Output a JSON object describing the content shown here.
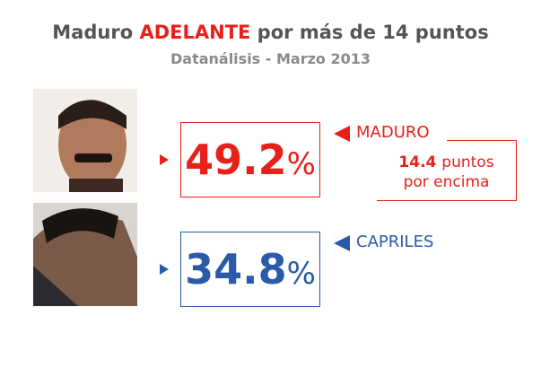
{
  "header": {
    "title_parts": [
      "Maduro ",
      "ADELANTE",
      " por más de 14 puntos"
    ],
    "subtitle": "Datanálisis - Marzo 2013"
  },
  "candidates": [
    {
      "name": "MADURO",
      "value": "49.2",
      "unit": "%"
    },
    {
      "name": "CAPRILES",
      "value": "34.8",
      "unit": "%"
    }
  ],
  "note": {
    "lead": "14.4",
    "rest": "puntos",
    "line2": "por encima"
  }
}
